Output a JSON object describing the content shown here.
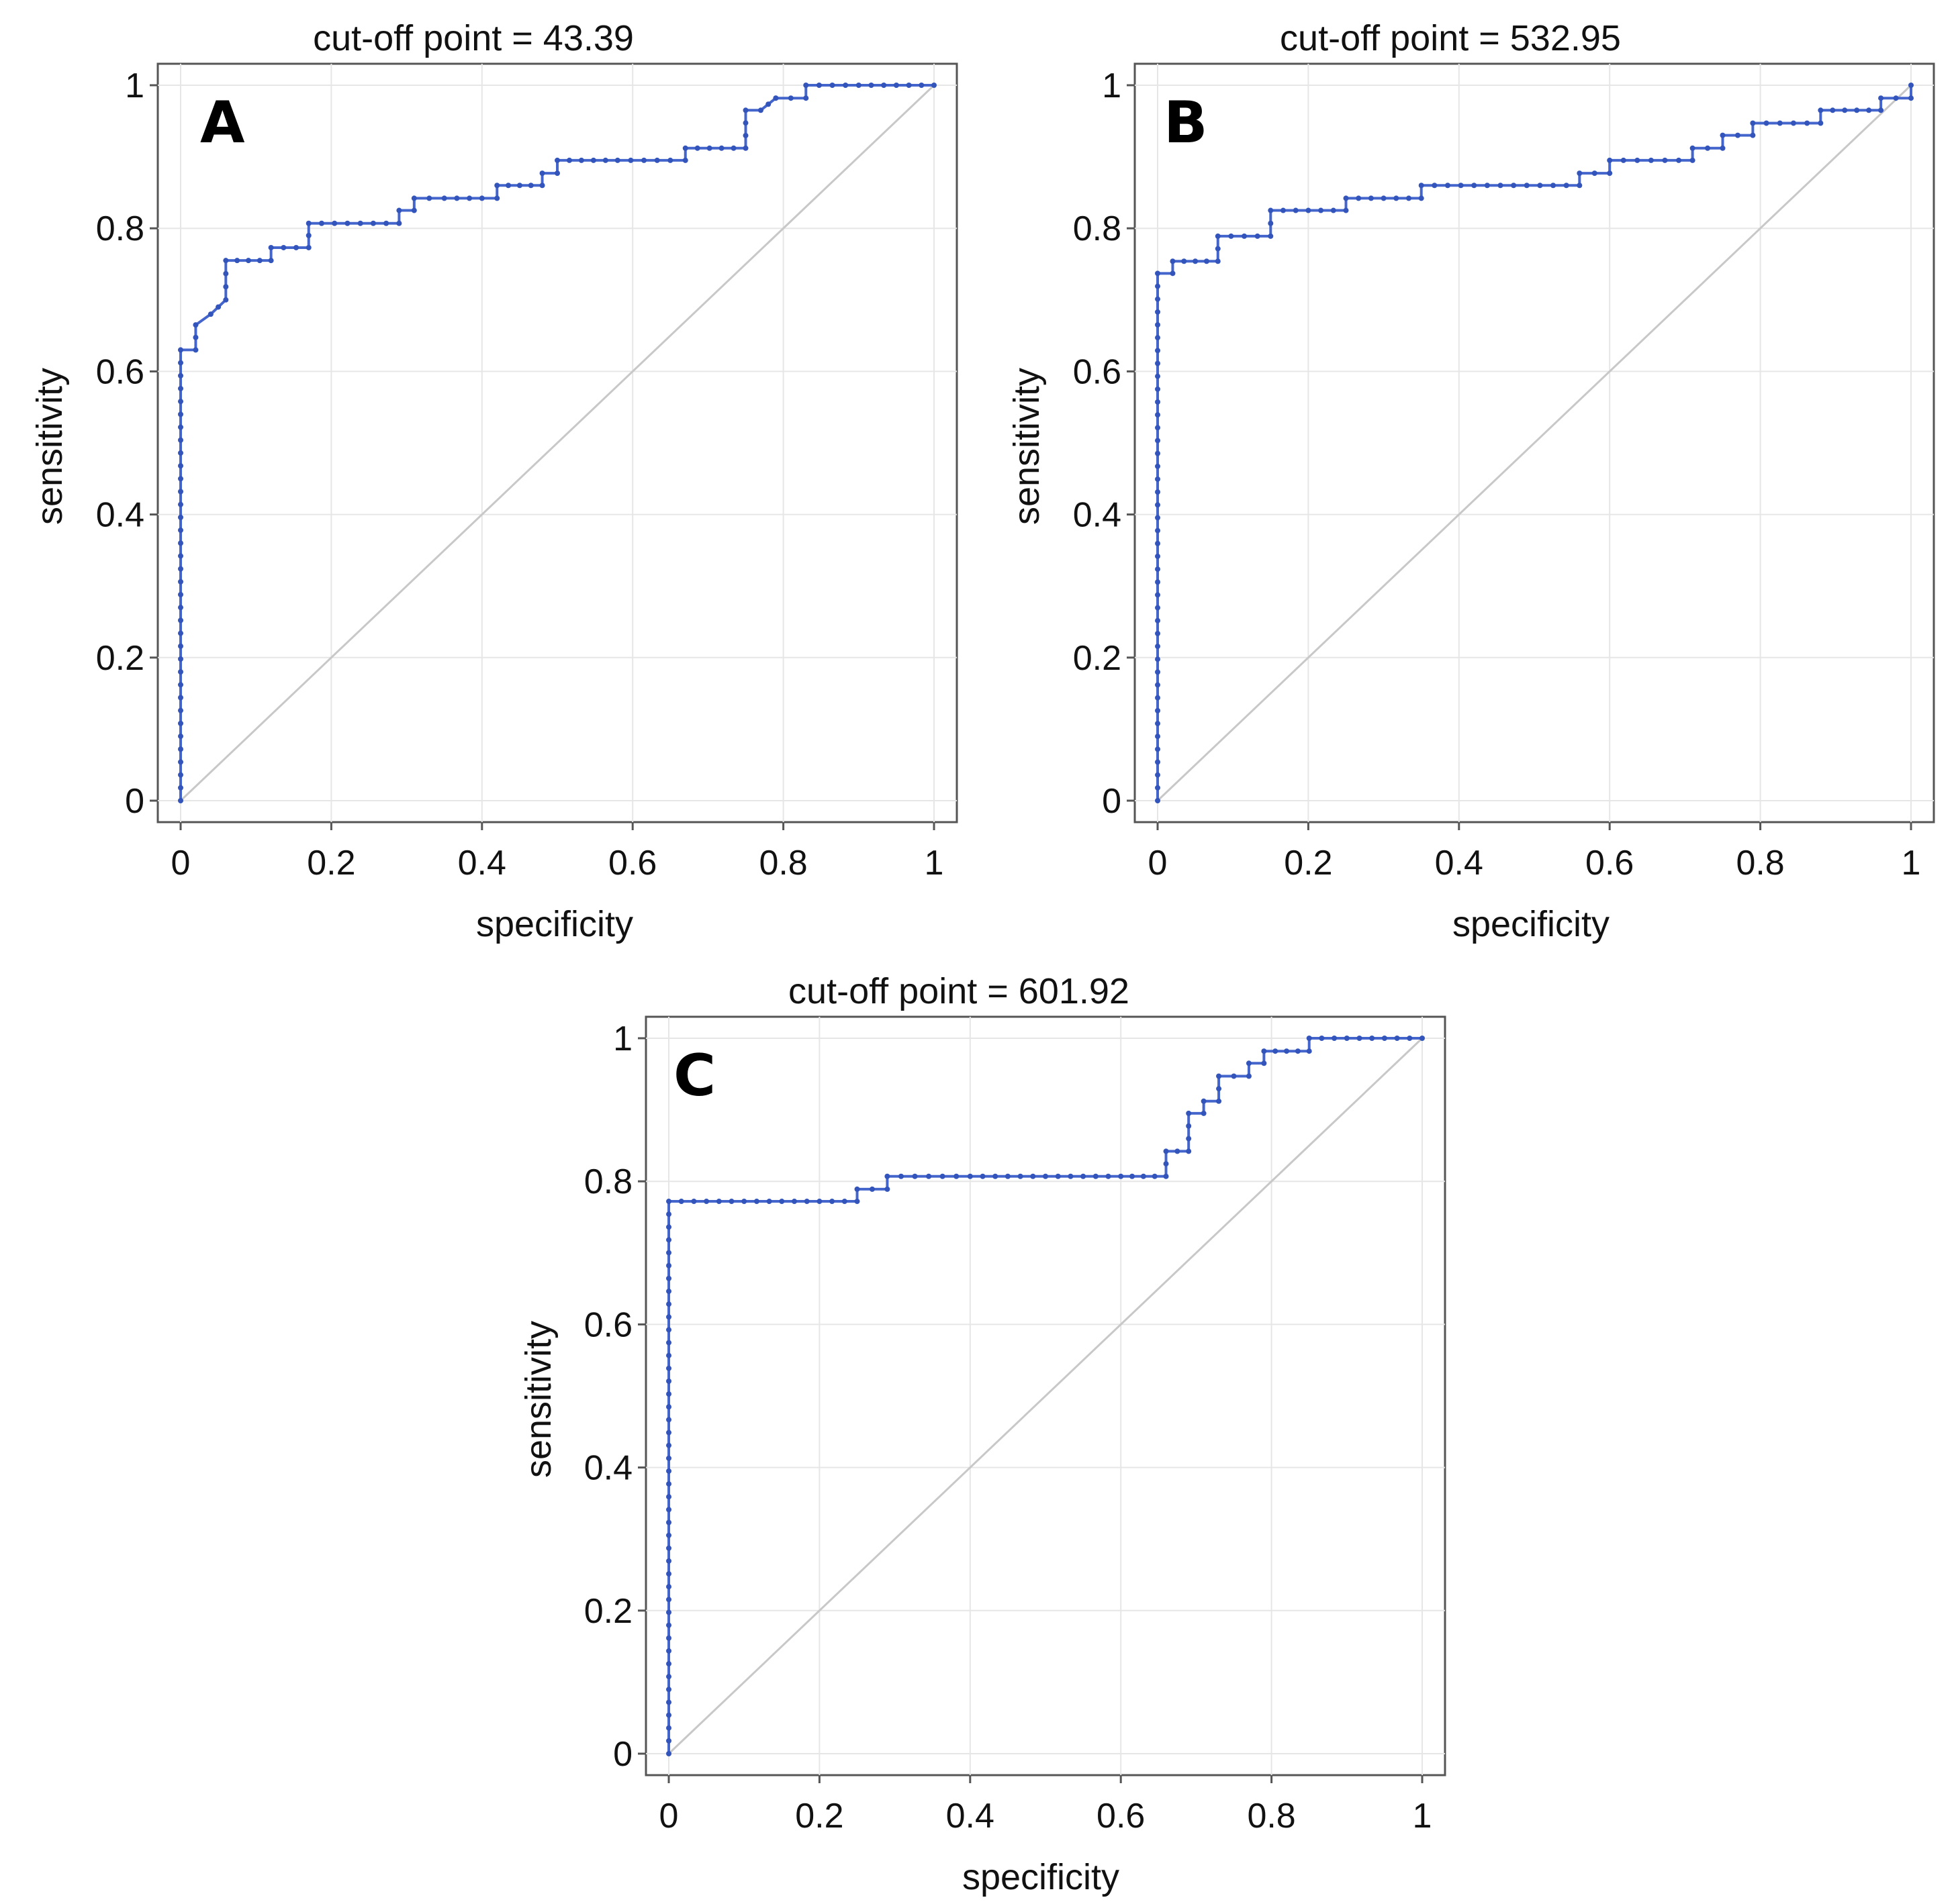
{
  "chart_data": [
    {
      "type": "line",
      "panel": "A",
      "title": "cut-off point = 43.39",
      "xlabel": "specificity",
      "ylabel": "sensitivity",
      "xlim": [
        0,
        1
      ],
      "ylim": [
        0,
        1
      ],
      "xticks": [
        "0",
        "0.2",
        "0.4",
        "0.6",
        "0.8",
        "1"
      ],
      "yticks": [
        "0",
        "0.2",
        "0.4",
        "0.6",
        "0.8",
        "1"
      ],
      "grid": true,
      "reference_line": "diagonal",
      "color": "#4466cc",
      "x": [
        0,
        0,
        0.02,
        0.02,
        0.04,
        0.06,
        0.06,
        0.12,
        0.12,
        0.17,
        0.17,
        0.29,
        0.29,
        0.31,
        0.31,
        0.35,
        0.4,
        0.42,
        0.42,
        0.48,
        0.48,
        0.5,
        0.5,
        0.58,
        0.65,
        0.67,
        0.67,
        0.75,
        0.75,
        0.77,
        0.79,
        0.79,
        0.83,
        0.83,
        0.9,
        1
      ],
      "y": [
        0,
        0.63,
        0.63,
        0.665,
        0.68,
        0.7,
        0.755,
        0.755,
        0.773,
        0.773,
        0.807,
        0.807,
        0.825,
        0.825,
        0.842,
        0.842,
        0.842,
        0.842,
        0.86,
        0.86,
        0.877,
        0.877,
        0.895,
        0.895,
        0.895,
        0.895,
        0.912,
        0.912,
        0.965,
        0.965,
        0.982,
        0.982,
        0.982,
        1,
        1,
        1
      ]
    },
    {
      "type": "line",
      "panel": "B",
      "title": "cut-off point = 532.95",
      "xlabel": "specificity",
      "ylabel": "sensitivity",
      "xlim": [
        0,
        1
      ],
      "ylim": [
        0,
        1
      ],
      "xticks": [
        "0",
        "0.2",
        "0.4",
        "0.6",
        "0.8",
        "1"
      ],
      "yticks": [
        "0",
        "0.2",
        "0.4",
        "0.6",
        "0.8",
        "1"
      ],
      "grid": true,
      "reference_line": "diagonal",
      "color": "#4466cc",
      "x": [
        0,
        0,
        0.02,
        0.02,
        0.08,
        0.08,
        0.15,
        0.15,
        0.25,
        0.25,
        0.35,
        0.35,
        0.56,
        0.56,
        0.6,
        0.6,
        0.71,
        0.71,
        0.75,
        0.75,
        0.79,
        0.79,
        0.88,
        0.88,
        0.96,
        0.96,
        1,
        1
      ],
      "y": [
        0,
        0.737,
        0.737,
        0.754,
        0.754,
        0.789,
        0.789,
        0.825,
        0.825,
        0.842,
        0.842,
        0.86,
        0.86,
        0.877,
        0.877,
        0.895,
        0.895,
        0.912,
        0.912,
        0.93,
        0.93,
        0.947,
        0.947,
        0.965,
        0.965,
        0.982,
        0.982,
        1
      ]
    },
    {
      "type": "line",
      "panel": "C",
      "title": "cut-off point = 601.92",
      "xlabel": "specificity",
      "ylabel": "sensitivity",
      "xlim": [
        0,
        1
      ],
      "ylim": [
        0,
        1
      ],
      "xticks": [
        "0",
        "0.2",
        "0.4",
        "0.6",
        "0.8",
        "1"
      ],
      "yticks": [
        "0",
        "0.2",
        "0.4",
        "0.6",
        "0.8",
        "1"
      ],
      "grid": true,
      "reference_line": "diagonal",
      "color": "#4466cc",
      "x": [
        0,
        0,
        0.25,
        0.25,
        0.29,
        0.29,
        0.4,
        0.5,
        0.6,
        0.66,
        0.66,
        0.69,
        0.69,
        0.71,
        0.71,
        0.73,
        0.73,
        0.77,
        0.77,
        0.79,
        0.79,
        0.85,
        0.85,
        0.9,
        1
      ],
      "y": [
        0,
        0.772,
        0.772,
        0.789,
        0.789,
        0.807,
        0.807,
        0.807,
        0.807,
        0.807,
        0.842,
        0.842,
        0.895,
        0.895,
        0.912,
        0.912,
        0.947,
        0.947,
        0.965,
        0.965,
        0.982,
        0.982,
        1,
        1,
        1
      ]
    }
  ]
}
